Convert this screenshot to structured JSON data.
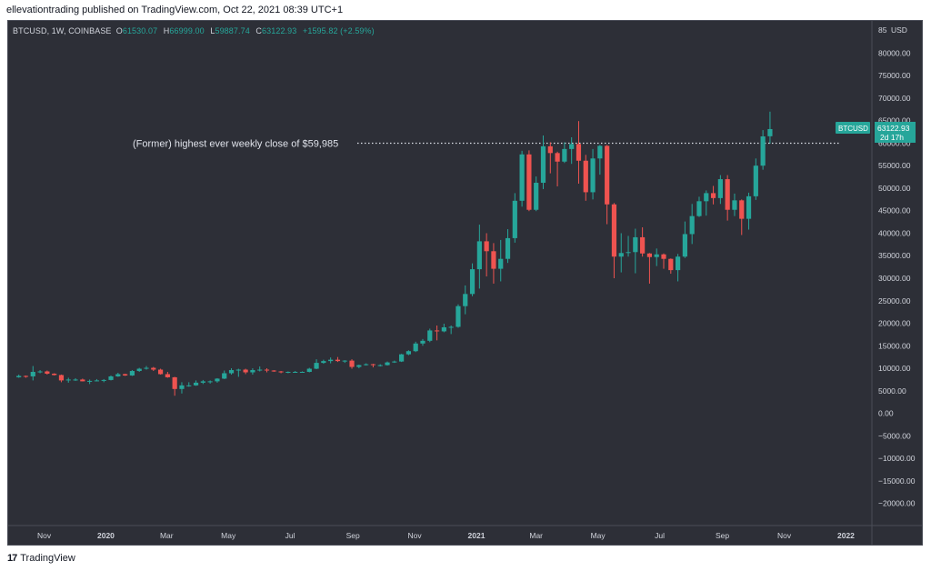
{
  "header": {
    "published_text": "ellevationtrading published on TradingView.com, Oct 22, 2021 08:39 UTC+1"
  },
  "legend": {
    "symbol": "BTCUSD, 1W, COINBASE",
    "o_label": "O",
    "o_value": "61530.07",
    "h_label": "H",
    "h_value": "66999.00",
    "l_label": "L",
    "l_value": "59887.74",
    "c_label": "C",
    "c_value": "63122.93",
    "change": "+1595.82 (+2.59%)"
  },
  "footer": {
    "logo": "17",
    "brand": "TradingView"
  },
  "colors": {
    "up": "#26a69a",
    "down": "#ef5350",
    "background": "#2d2f37",
    "axis_text": "#d1d4dc",
    "price_tag": "#26a69a"
  },
  "chart_data": {
    "type": "candlestick",
    "currency_label": "USD",
    "y_axis_top_label": "85",
    "ylim": [
      -25000,
      85000
    ],
    "y_ticks": [
      80000,
      75000,
      70000,
      65000,
      60000,
      55000,
      50000,
      45000,
      40000,
      35000,
      30000,
      25000,
      20000,
      15000,
      10000,
      5000,
      0,
      -5000,
      -10000,
      -15000,
      -20000
    ],
    "y_tick_labels": [
      "80000.00",
      "75000.00",
      "70000.00",
      "65000.00",
      "60000.00",
      "55000.00",
      "50000.00",
      "45000.00",
      "40000.00",
      "35000.00",
      "30000.00",
      "25000.00",
      "20000.00",
      "15000.00",
      "10000.00",
      "5000.00",
      "0.00",
      "−5000.00",
      "−10000.00",
      "−15000.00",
      "−20000.00"
    ],
    "x_ticks": [
      {
        "label": "Nov",
        "date": "2019-11-01"
      },
      {
        "label": "2020",
        "date": "2020-01-01",
        "bold": true
      },
      {
        "label": "Mar",
        "date": "2020-03-01"
      },
      {
        "label": "May",
        "date": "2020-05-01"
      },
      {
        "label": "Jul",
        "date": "2020-07-01"
      },
      {
        "label": "Sep",
        "date": "2020-09-01"
      },
      {
        "label": "Nov",
        "date": "2020-11-01"
      },
      {
        "label": "2021",
        "date": "2021-01-01",
        "bold": true
      },
      {
        "label": "Mar",
        "date": "2021-03-01"
      },
      {
        "label": "May",
        "date": "2021-05-01"
      },
      {
        "label": "Jul",
        "date": "2021-07-01"
      },
      {
        "label": "Sep",
        "date": "2021-09-01"
      },
      {
        "label": "Nov",
        "date": "2021-11-01"
      },
      {
        "label": "2022",
        "date": "2022-01-01",
        "bold": true
      }
    ],
    "interval": "1W",
    "candles": [
      {
        "date": "2019-10-07",
        "o": 8000,
        "h": 8600,
        "l": 7900,
        "c": 8300
      },
      {
        "date": "2019-10-14",
        "o": 8300,
        "h": 8400,
        "l": 7900,
        "c": 8200
      },
      {
        "date": "2019-10-21",
        "o": 8200,
        "h": 10500,
        "l": 7300,
        "c": 9200
      },
      {
        "date": "2019-10-28",
        "o": 9200,
        "h": 9600,
        "l": 8900,
        "c": 9300
      },
      {
        "date": "2019-11-04",
        "o": 9300,
        "h": 9500,
        "l": 8600,
        "c": 8800
      },
      {
        "date": "2019-11-11",
        "o": 8800,
        "h": 8900,
        "l": 8400,
        "c": 8500
      },
      {
        "date": "2019-11-18",
        "o": 8500,
        "h": 8600,
        "l": 6900,
        "c": 7300
      },
      {
        "date": "2019-11-25",
        "o": 7300,
        "h": 7900,
        "l": 6800,
        "c": 7500
      },
      {
        "date": "2019-12-02",
        "o": 7500,
        "h": 7800,
        "l": 7200,
        "c": 7500
      },
      {
        "date": "2019-12-09",
        "o": 7500,
        "h": 7700,
        "l": 7100,
        "c": 7100
      },
      {
        "date": "2019-12-16",
        "o": 7100,
        "h": 7500,
        "l": 6500,
        "c": 7200
      },
      {
        "date": "2019-12-23",
        "o": 7200,
        "h": 7600,
        "l": 7100,
        "c": 7300
      },
      {
        "date": "2019-12-30",
        "o": 7300,
        "h": 7600,
        "l": 6900,
        "c": 7400
      },
      {
        "date": "2020-01-06",
        "o": 7400,
        "h": 8400,
        "l": 7300,
        "c": 8200
      },
      {
        "date": "2020-01-13",
        "o": 8200,
        "h": 9000,
        "l": 8100,
        "c": 8700
      },
      {
        "date": "2020-01-20",
        "o": 8700,
        "h": 8800,
        "l": 8300,
        "c": 8400
      },
      {
        "date": "2020-01-27",
        "o": 8400,
        "h": 9600,
        "l": 8300,
        "c": 9400
      },
      {
        "date": "2020-02-03",
        "o": 9400,
        "h": 10100,
        "l": 9200,
        "c": 9900
      },
      {
        "date": "2020-02-10",
        "o": 9900,
        "h": 10500,
        "l": 9700,
        "c": 10100
      },
      {
        "date": "2020-02-17",
        "o": 10100,
        "h": 10300,
        "l": 9400,
        "c": 9700
      },
      {
        "date": "2020-02-24",
        "o": 9700,
        "h": 9900,
        "l": 8600,
        "c": 8700
      },
      {
        "date": "2020-03-02",
        "o": 8700,
        "h": 9200,
        "l": 7900,
        "c": 8000
      },
      {
        "date": "2020-03-09",
        "o": 8000,
        "h": 8100,
        "l": 3900,
        "c": 5400
      },
      {
        "date": "2020-03-16",
        "o": 5400,
        "h": 6900,
        "l": 4400,
        "c": 6200
      },
      {
        "date": "2020-03-23",
        "o": 6200,
        "h": 6900,
        "l": 5900,
        "c": 6200
      },
      {
        "date": "2020-03-30",
        "o": 6200,
        "h": 7300,
        "l": 6100,
        "c": 6800
      },
      {
        "date": "2020-04-06",
        "o": 6800,
        "h": 7400,
        "l": 6500,
        "c": 7100
      },
      {
        "date": "2020-04-13",
        "o": 7100,
        "h": 7300,
        "l": 6600,
        "c": 7100
      },
      {
        "date": "2020-04-20",
        "o": 7100,
        "h": 7800,
        "l": 6800,
        "c": 7700
      },
      {
        "date": "2020-04-27",
        "o": 7700,
        "h": 9500,
        "l": 7600,
        "c": 8900
      },
      {
        "date": "2020-05-04",
        "o": 8900,
        "h": 10000,
        "l": 8600,
        "c": 9600
      },
      {
        "date": "2020-05-11",
        "o": 9600,
        "h": 9900,
        "l": 8100,
        "c": 9700
      },
      {
        "date": "2020-05-18",
        "o": 9700,
        "h": 9900,
        "l": 8700,
        "c": 9100
      },
      {
        "date": "2020-05-25",
        "o": 9100,
        "h": 10000,
        "l": 8600,
        "c": 9600
      },
      {
        "date": "2020-06-01",
        "o": 9600,
        "h": 10400,
        "l": 9300,
        "c": 9700
      },
      {
        "date": "2020-06-08",
        "o": 9700,
        "h": 10000,
        "l": 9100,
        "c": 9500
      },
      {
        "date": "2020-06-15",
        "o": 9500,
        "h": 9600,
        "l": 9200,
        "c": 9300
      },
      {
        "date": "2020-06-22",
        "o": 9300,
        "h": 9400,
        "l": 8900,
        "c": 9100
      },
      {
        "date": "2020-06-29",
        "o": 9100,
        "h": 9300,
        "l": 8900,
        "c": 9200
      },
      {
        "date": "2020-07-06",
        "o": 9200,
        "h": 9400,
        "l": 9100,
        "c": 9200
      },
      {
        "date": "2020-07-13",
        "o": 9200,
        "h": 9300,
        "l": 9000,
        "c": 9200
      },
      {
        "date": "2020-07-20",
        "o": 9200,
        "h": 10100,
        "l": 9100,
        "c": 9900
      },
      {
        "date": "2020-07-27",
        "o": 9900,
        "h": 12000,
        "l": 9800,
        "c": 11200
      },
      {
        "date": "2020-08-03",
        "o": 11200,
        "h": 11900,
        "l": 11000,
        "c": 11600
      },
      {
        "date": "2020-08-10",
        "o": 11600,
        "h": 12400,
        "l": 11100,
        "c": 11900
      },
      {
        "date": "2020-08-17",
        "o": 11900,
        "h": 12500,
        "l": 11400,
        "c": 11600
      },
      {
        "date": "2020-08-24",
        "o": 11600,
        "h": 11800,
        "l": 11200,
        "c": 11700
      },
      {
        "date": "2020-08-31",
        "o": 11700,
        "h": 12000,
        "l": 9900,
        "c": 10300
      },
      {
        "date": "2020-09-07",
        "o": 10300,
        "h": 10800,
        "l": 10000,
        "c": 10700
      },
      {
        "date": "2020-09-14",
        "o": 10700,
        "h": 11100,
        "l": 10600,
        "c": 10900
      },
      {
        "date": "2020-09-21",
        "o": 10900,
        "h": 11000,
        "l": 10200,
        "c": 10700
      },
      {
        "date": "2020-09-28",
        "o": 10700,
        "h": 10900,
        "l": 10400,
        "c": 10700
      },
      {
        "date": "2020-10-05",
        "o": 10700,
        "h": 11500,
        "l": 10600,
        "c": 11300
      },
      {
        "date": "2020-10-12",
        "o": 11300,
        "h": 11700,
        "l": 11200,
        "c": 11500
      },
      {
        "date": "2020-10-19",
        "o": 11500,
        "h": 13200,
        "l": 11400,
        "c": 13100
      },
      {
        "date": "2020-10-26",
        "o": 13100,
        "h": 14000,
        "l": 12900,
        "c": 13800
      },
      {
        "date": "2020-11-02",
        "o": 13800,
        "h": 15900,
        "l": 13600,
        "c": 15500
      },
      {
        "date": "2020-11-09",
        "o": 15500,
        "h": 16500,
        "l": 15000,
        "c": 16100
      },
      {
        "date": "2020-11-16",
        "o": 16100,
        "h": 18800,
        "l": 15800,
        "c": 18400
      },
      {
        "date": "2020-11-23",
        "o": 18400,
        "h": 19500,
        "l": 16200,
        "c": 18200
      },
      {
        "date": "2020-11-30",
        "o": 18200,
        "h": 19900,
        "l": 18000,
        "c": 19100
      },
      {
        "date": "2020-12-07",
        "o": 19100,
        "h": 19500,
        "l": 17600,
        "c": 19200
      },
      {
        "date": "2020-12-14",
        "o": 19200,
        "h": 24200,
        "l": 19000,
        "c": 23800
      },
      {
        "date": "2020-12-21",
        "o": 23800,
        "h": 28400,
        "l": 22000,
        "c": 26500
      },
      {
        "date": "2020-12-28",
        "o": 26500,
        "h": 33300,
        "l": 26000,
        "c": 32000
      },
      {
        "date": "2021-01-04",
        "o": 32000,
        "h": 41900,
        "l": 27700,
        "c": 38200
      },
      {
        "date": "2021-01-11",
        "o": 38200,
        "h": 40000,
        "l": 30400,
        "c": 36000
      },
      {
        "date": "2021-01-18",
        "o": 36000,
        "h": 37800,
        "l": 28800,
        "c": 32100
      },
      {
        "date": "2021-01-25",
        "o": 32100,
        "h": 38500,
        "l": 29300,
        "c": 34300
      },
      {
        "date": "2021-02-01",
        "o": 34300,
        "h": 40900,
        "l": 33400,
        "c": 38900
      },
      {
        "date": "2021-02-08",
        "o": 38900,
        "h": 48900,
        "l": 37900,
        "c": 47200
      },
      {
        "date": "2021-02-15",
        "o": 47200,
        "h": 58300,
        "l": 45900,
        "c": 57500
      },
      {
        "date": "2021-02-22",
        "o": 57500,
        "h": 58400,
        "l": 44900,
        "c": 45200
      },
      {
        "date": "2021-03-01",
        "o": 45200,
        "h": 52600,
        "l": 44900,
        "c": 51200
      },
      {
        "date": "2021-03-08",
        "o": 51200,
        "h": 61700,
        "l": 49800,
        "c": 59300
      },
      {
        "date": "2021-03-15",
        "o": 59300,
        "h": 60200,
        "l": 53300,
        "c": 57800
      },
      {
        "date": "2021-03-22",
        "o": 57800,
        "h": 58100,
        "l": 50400,
        "c": 55900
      },
      {
        "date": "2021-03-29",
        "o": 55900,
        "h": 60200,
        "l": 55600,
        "c": 58700
      },
      {
        "date": "2021-04-05",
        "o": 58700,
        "h": 61300,
        "l": 55400,
        "c": 59800
      },
      {
        "date": "2021-04-12",
        "o": 59800,
        "h": 64900,
        "l": 51000,
        "c": 56100
      },
      {
        "date": "2021-04-19",
        "o": 56100,
        "h": 57400,
        "l": 47200,
        "c": 49100
      },
      {
        "date": "2021-04-26",
        "o": 49100,
        "h": 58700,
        "l": 47500,
        "c": 56600
      },
      {
        "date": "2021-05-03",
        "o": 56600,
        "h": 59600,
        "l": 53000,
        "c": 59400
      },
      {
        "date": "2021-05-10",
        "o": 59400,
        "h": 59600,
        "l": 42000,
        "c": 46400
      },
      {
        "date": "2021-05-17",
        "o": 46400,
        "h": 46700,
        "l": 30000,
        "c": 34800
      },
      {
        "date": "2021-05-24",
        "o": 34800,
        "h": 40000,
        "l": 31300,
        "c": 35600
      },
      {
        "date": "2021-05-31",
        "o": 35600,
        "h": 39400,
        "l": 34800,
        "c": 35800
      },
      {
        "date": "2021-06-07",
        "o": 35800,
        "h": 41000,
        "l": 31100,
        "c": 39100
      },
      {
        "date": "2021-06-14",
        "o": 39100,
        "h": 41300,
        "l": 34800,
        "c": 35500
      },
      {
        "date": "2021-06-21",
        "o": 35500,
        "h": 35600,
        "l": 28800,
        "c": 34700
      },
      {
        "date": "2021-06-28",
        "o": 34700,
        "h": 36600,
        "l": 32700,
        "c": 35300
      },
      {
        "date": "2021-07-05",
        "o": 35300,
        "h": 35500,
        "l": 32100,
        "c": 34300
      },
      {
        "date": "2021-07-12",
        "o": 34300,
        "h": 34400,
        "l": 31000,
        "c": 31800
      },
      {
        "date": "2021-07-19",
        "o": 31800,
        "h": 35400,
        "l": 29300,
        "c": 34800
      },
      {
        "date": "2021-07-26",
        "o": 34800,
        "h": 42600,
        "l": 34500,
        "c": 39800
      },
      {
        "date": "2021-08-02",
        "o": 39800,
        "h": 46500,
        "l": 37600,
        "c": 43800
      },
      {
        "date": "2021-08-09",
        "o": 43800,
        "h": 48100,
        "l": 43600,
        "c": 47100
      },
      {
        "date": "2021-08-16",
        "o": 47100,
        "h": 49500,
        "l": 43900,
        "c": 48900
      },
      {
        "date": "2021-08-23",
        "o": 48900,
        "h": 50500,
        "l": 46400,
        "c": 47800
      },
      {
        "date": "2021-08-30",
        "o": 47800,
        "h": 52900,
        "l": 46500,
        "c": 52000
      },
      {
        "date": "2021-09-06",
        "o": 52000,
        "h": 52900,
        "l": 42800,
        "c": 45200
      },
      {
        "date": "2021-09-13",
        "o": 45200,
        "h": 48800,
        "l": 43800,
        "c": 47300
      },
      {
        "date": "2021-09-20",
        "o": 47300,
        "h": 47500,
        "l": 39600,
        "c": 43200
      },
      {
        "date": "2021-09-27",
        "o": 43200,
        "h": 49000,
        "l": 40800,
        "c": 48200
      },
      {
        "date": "2021-10-04",
        "o": 48200,
        "h": 56600,
        "l": 47400,
        "c": 55000
      },
      {
        "date": "2021-10-11",
        "o": 55000,
        "h": 62900,
        "l": 54100,
        "c": 61500
      },
      {
        "date": "2021-10-18",
        "o": 61530.07,
        "h": 66999.0,
        "l": 59887.74,
        "c": 63122.93
      }
    ],
    "horizontal_line": {
      "value": 59985,
      "label": "(Former) highest ever weekly close of $59,985"
    },
    "last_price": {
      "symbol": "BTCUSD",
      "value": "63122.93",
      "countdown": "2d 17h"
    }
  }
}
